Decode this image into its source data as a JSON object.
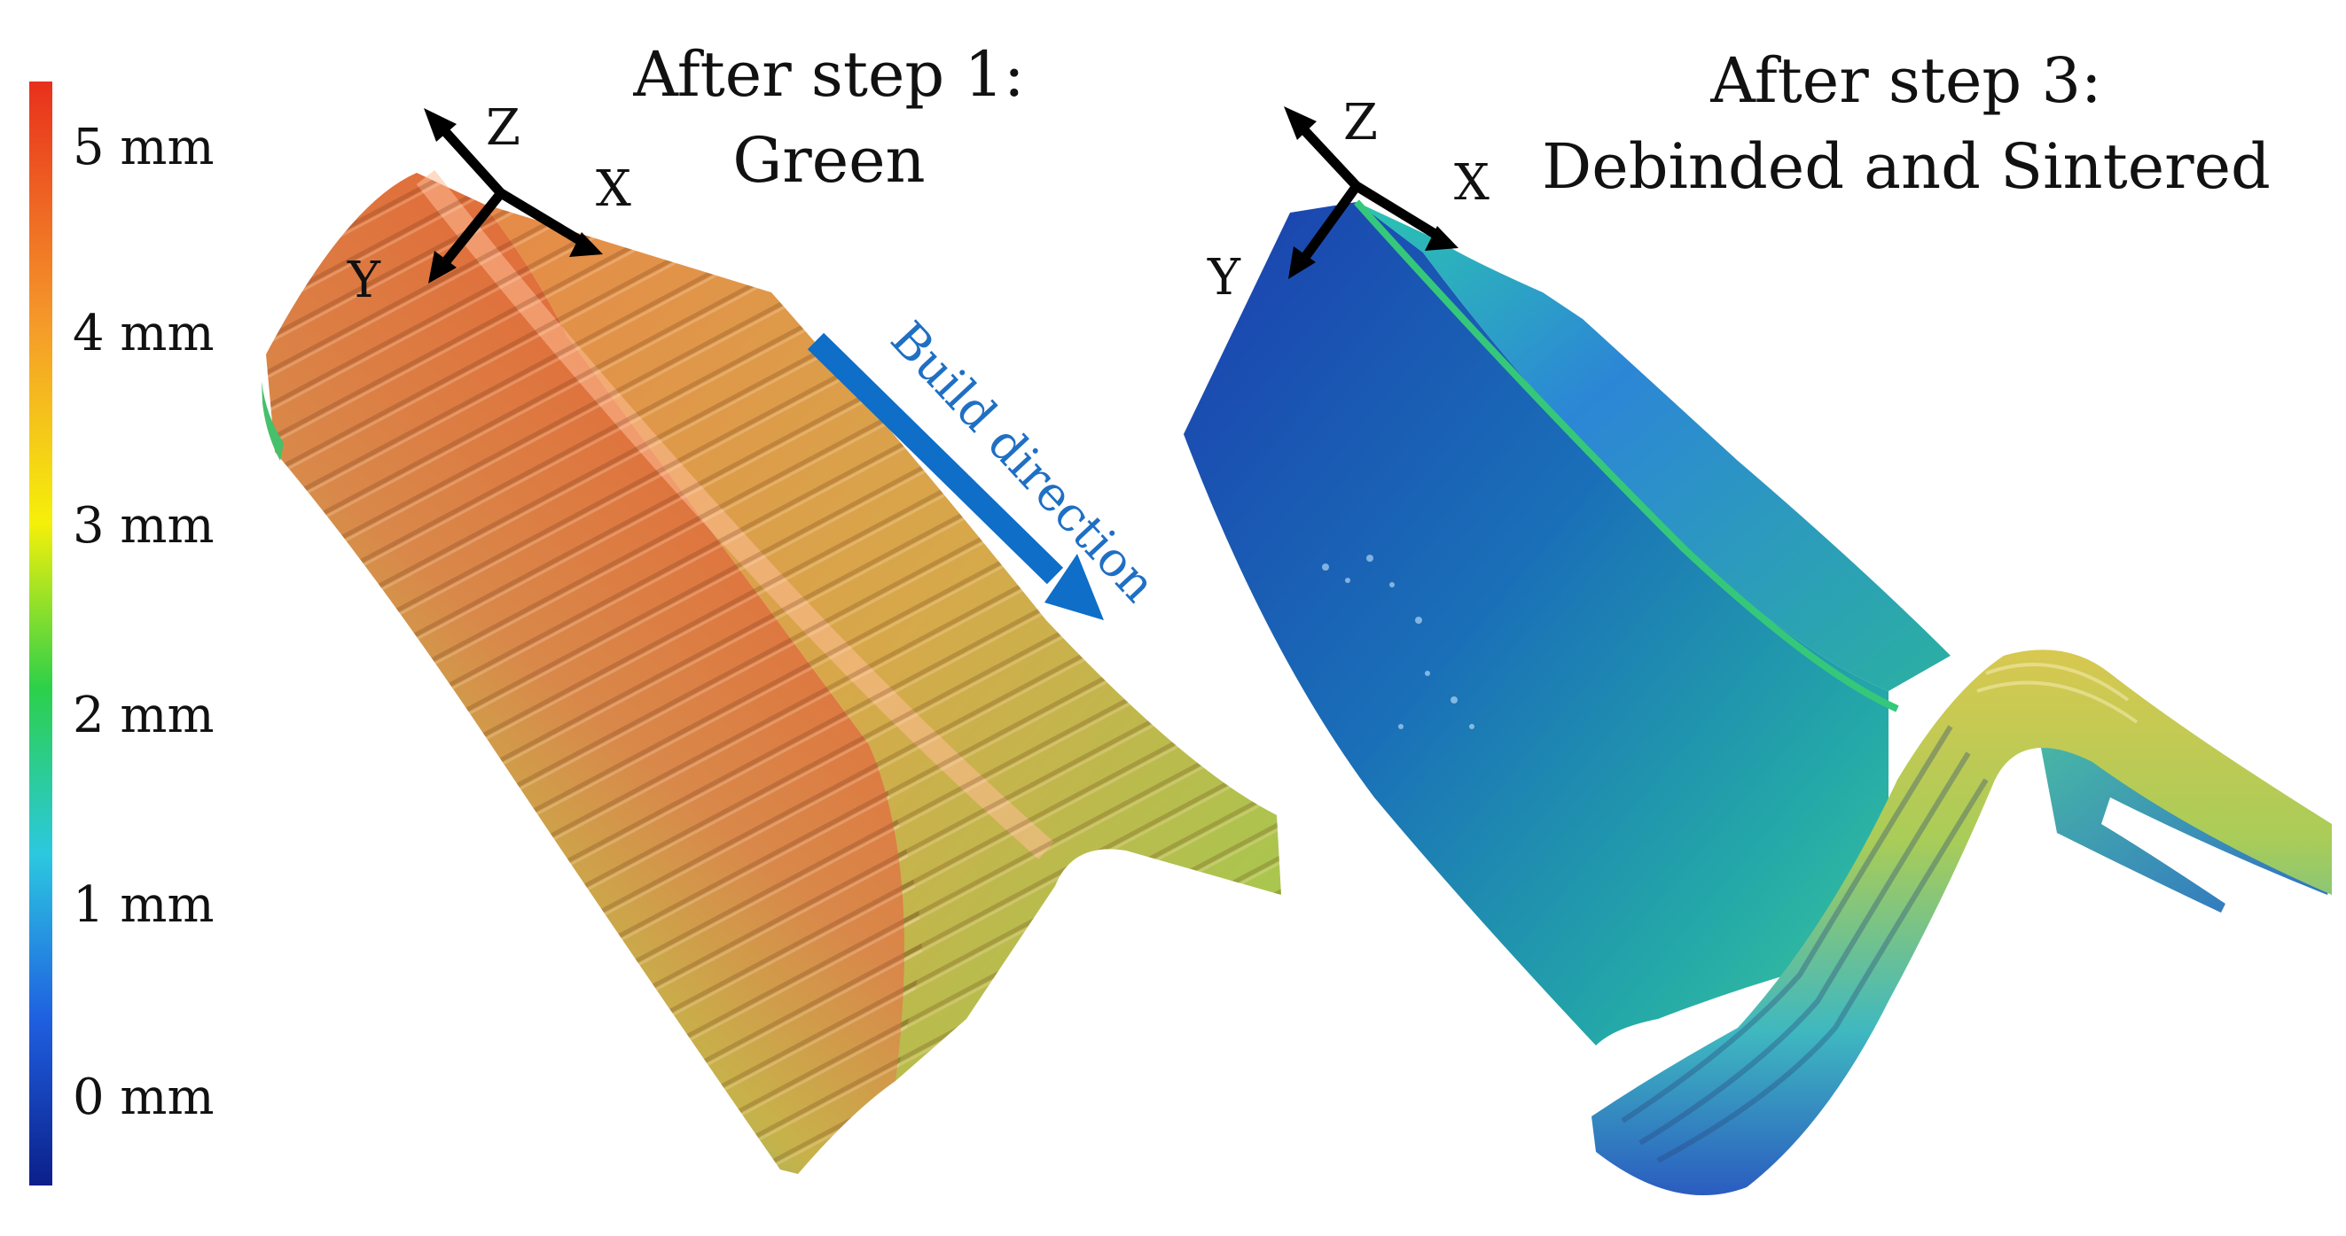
{
  "colorbar": {
    "ticks": [
      {
        "label": "5 mm",
        "value": 5
      },
      {
        "label": "4 mm",
        "value": 4
      },
      {
        "label": "3 mm",
        "value": 3
      },
      {
        "label": "2 mm",
        "value": 2
      },
      {
        "label": "1 mm",
        "value": 1
      },
      {
        "label": "0 mm",
        "value": 0
      }
    ],
    "colors": [
      "#0b1f8a",
      "#1f5fe0",
      "#2cc8e0",
      "#2cd04a",
      "#f5f00a",
      "#f59a2a",
      "#e8301c"
    ]
  },
  "left_panel": {
    "title_line1": "After step 1:",
    "title_line2": "Green",
    "axis_z": "Z",
    "axis_x": "X",
    "axis_y": "Y",
    "build_direction": "Build direction",
    "arrow_color": "#0e6ec8"
  },
  "right_panel": {
    "title_line1": "After step 3:",
    "title_line2": "Debinded and Sintered",
    "axis_z": "Z",
    "axis_x": "X",
    "axis_y": "Y"
  }
}
